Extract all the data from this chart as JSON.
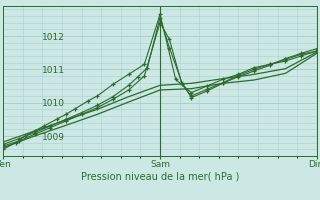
{
  "bg_color": "#cce8e4",
  "grid_color": "#aad0cc",
  "line_color": "#2d6a2d",
  "xlabel": "Pression niveau de la mer( hPa )",
  "xlabel_color": "#2d6a2d",
  "tick_color": "#2d6a2d",
  "yticks": [
    1009,
    1010,
    1011,
    1012
  ],
  "xtick_labels": [
    "Ven",
    "Sam",
    "Dim"
  ],
  "xtick_positions": [
    0.0,
    0.5,
    1.0
  ],
  "ylim": [
    1008.4,
    1012.9
  ],
  "xlim": [
    0.0,
    1.0
  ],
  "series1_x": [
    0.0,
    0.04,
    0.07,
    0.1,
    0.13,
    0.17,
    0.2,
    0.23,
    0.27,
    0.3,
    0.35,
    0.4,
    0.45,
    0.5,
    0.55,
    0.6,
    0.65,
    0.7,
    0.75,
    0.8,
    0.85,
    0.9,
    0.95,
    1.0
  ],
  "series1_y": [
    1008.6,
    1008.8,
    1009.0,
    1009.15,
    1009.3,
    1009.5,
    1009.65,
    1009.82,
    1010.05,
    1010.2,
    1010.55,
    1010.85,
    1011.15,
    1012.65,
    1010.7,
    1010.3,
    1010.5,
    1010.7,
    1010.85,
    1011.05,
    1011.15,
    1011.25,
    1011.4,
    1011.55
  ],
  "series2_x": [
    0.0,
    0.05,
    0.1,
    0.15,
    0.2,
    0.25,
    0.3,
    0.35,
    0.4,
    0.45,
    0.5,
    0.53,
    0.57,
    0.6,
    0.65,
    0.7,
    0.75,
    0.8,
    0.85,
    0.9,
    0.95,
    1.0
  ],
  "series2_y": [
    1008.7,
    1008.85,
    1009.05,
    1009.25,
    1009.45,
    1009.65,
    1009.85,
    1010.1,
    1010.38,
    1010.8,
    1012.4,
    1011.9,
    1010.55,
    1010.2,
    1010.4,
    1010.6,
    1010.82,
    1011.0,
    1011.15,
    1011.3,
    1011.45,
    1011.55
  ],
  "series3_x": [
    0.0,
    0.05,
    0.1,
    0.15,
    0.2,
    0.25,
    0.3,
    0.35,
    0.4,
    0.43,
    0.46,
    0.5,
    0.53,
    0.57,
    0.6,
    0.65,
    0.7,
    0.75,
    0.8,
    0.85,
    0.9,
    0.95,
    1.0
  ],
  "series3_y": [
    1008.75,
    1008.92,
    1009.1,
    1009.3,
    1009.5,
    1009.7,
    1009.92,
    1010.18,
    1010.52,
    1010.78,
    1011.05,
    1012.55,
    1011.65,
    1010.6,
    1010.15,
    1010.35,
    1010.58,
    1010.78,
    1010.95,
    1011.12,
    1011.32,
    1011.48,
    1011.62
  ],
  "series4_x": [
    0.0,
    0.1,
    0.2,
    0.3,
    0.4,
    0.5,
    0.6,
    0.7,
    0.8,
    0.9,
    1.0
  ],
  "series4_y": [
    1008.82,
    1009.15,
    1009.48,
    1009.8,
    1010.18,
    1010.52,
    1010.58,
    1010.72,
    1010.85,
    1011.02,
    1011.52
  ],
  "series5_x": [
    0.0,
    0.1,
    0.2,
    0.3,
    0.4,
    0.5,
    0.6,
    0.7,
    0.8,
    0.9,
    1.0
  ],
  "series5_y": [
    1008.65,
    1009.0,
    1009.32,
    1009.65,
    1010.02,
    1010.38,
    1010.42,
    1010.58,
    1010.68,
    1010.88,
    1011.48
  ]
}
